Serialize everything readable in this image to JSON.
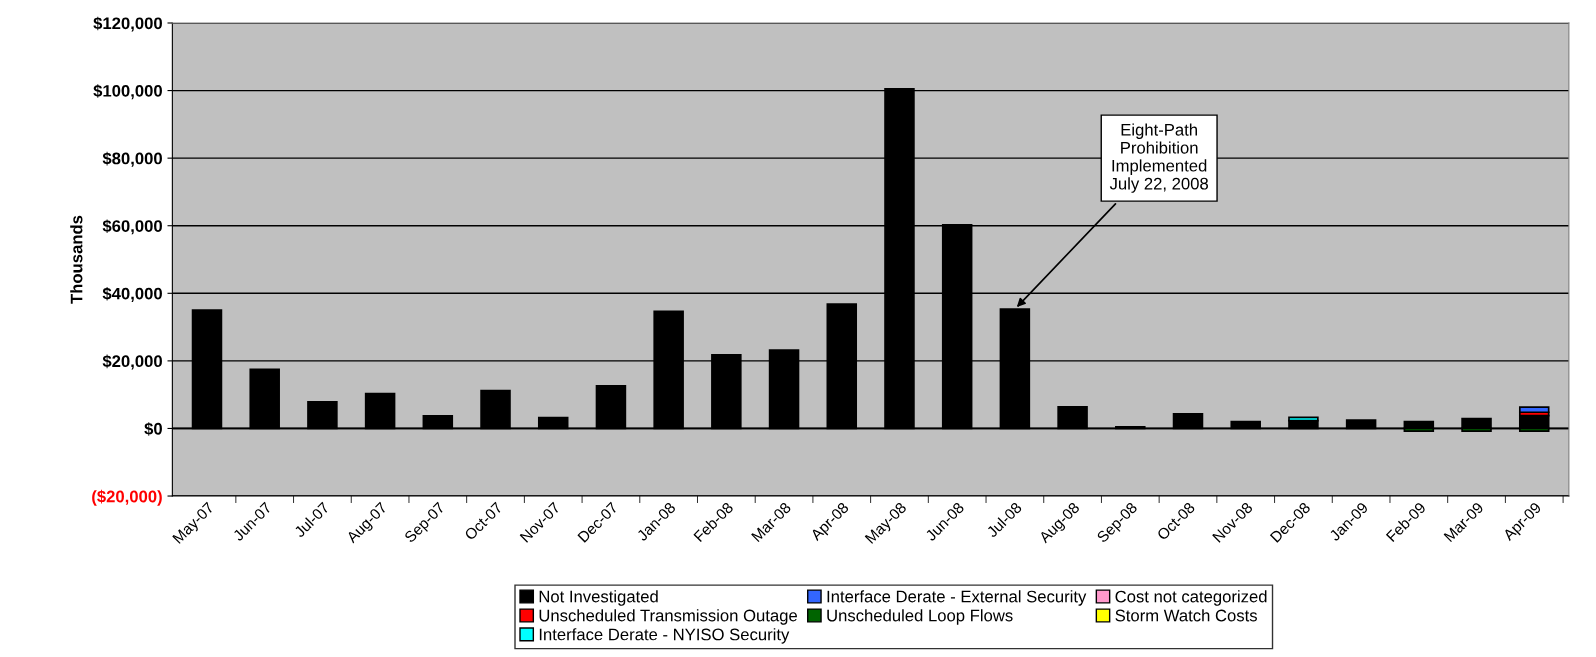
{
  "chart_data": {
    "type": "bar",
    "stacked": true,
    "ylabel": "Thousands",
    "categories": [
      "May-07",
      "Jun-07",
      "Jul-07",
      "Aug-07",
      "Sep-07",
      "Oct-07",
      "Nov-07",
      "Dec-07",
      "Jan-08",
      "Feb-08",
      "Mar-08",
      "Apr-08",
      "May-08",
      "Jun-08",
      "Jul-08",
      "Aug-08",
      "Sep-08",
      "Oct-08",
      "Nov-08",
      "Dec-08",
      "Jan-09",
      "Feb-09",
      "Mar-09",
      "Apr-09"
    ],
    "series": [
      {
        "name": "Not Investigated",
        "color": "#000000",
        "values": [
          35000,
          17500,
          7900,
          10300,
          3700,
          11200,
          3200,
          12600,
          34700,
          21800,
          23200,
          36800,
          100500,
          60300,
          35300,
          6400,
          500,
          4300,
          2000,
          2300,
          2500,
          2000,
          2900,
          3800
        ]
      },
      {
        "name": "Unscheduled Transmission Outage",
        "color": "#ff0000",
        "values": [
          null,
          null,
          null,
          null,
          null,
          null,
          null,
          null,
          null,
          null,
          null,
          null,
          null,
          null,
          null,
          null,
          null,
          null,
          null,
          null,
          null,
          null,
          null,
          1000
        ]
      },
      {
        "name": "Interface Derate - NYISO Security",
        "color": "#00ffff",
        "values": [
          null,
          null,
          null,
          null,
          null,
          null,
          null,
          null,
          null,
          null,
          null,
          null,
          null,
          null,
          null,
          null,
          null,
          null,
          null,
          1000,
          null,
          null,
          null,
          null
        ]
      },
      {
        "name": "Interface Derate - External Security",
        "color": "#3366ff",
        "values": [
          null,
          null,
          null,
          null,
          null,
          null,
          null,
          null,
          null,
          null,
          null,
          null,
          null,
          null,
          null,
          null,
          null,
          null,
          null,
          null,
          null,
          null,
          null,
          1500
        ]
      },
      {
        "name": "Unscheduled Loop Flows",
        "color": "#006400",
        "values": [
          null,
          null,
          null,
          null,
          null,
          null,
          null,
          null,
          null,
          null,
          null,
          null,
          null,
          null,
          null,
          null,
          null,
          null,
          null,
          null,
          null,
          -800,
          -800,
          -800
        ]
      },
      {
        "name": "Cost not categorized",
        "color": "#ff99cc",
        "values": [
          null,
          null,
          null,
          null,
          null,
          null,
          null,
          null,
          null,
          null,
          null,
          null,
          null,
          null,
          null,
          null,
          null,
          null,
          null,
          null,
          null,
          null,
          null,
          null
        ]
      },
      {
        "name": "Storm Watch Costs",
        "color": "#ffff00",
        "values": [
          null,
          null,
          null,
          null,
          null,
          null,
          null,
          null,
          null,
          null,
          null,
          null,
          null,
          null,
          null,
          null,
          null,
          null,
          null,
          null,
          null,
          null,
          null,
          null
        ]
      }
    ],
    "ylim": [
      -20000,
      120000
    ],
    "yticks": [
      {
        "value": -20000,
        "label": "($20,000)"
      },
      {
        "value": 0,
        "label": "$0"
      },
      {
        "value": 20000,
        "label": "$20,000"
      },
      {
        "value": 40000,
        "label": "$40,000"
      },
      {
        "value": 60000,
        "label": "$60,000"
      },
      {
        "value": 80000,
        "label": "$80,000"
      },
      {
        "value": 100000,
        "label": "$100,000"
      },
      {
        "value": 120000,
        "label": "$120,000"
      }
    ],
    "grid": "y",
    "legend": "bottom",
    "annotations": [
      {
        "text": "Eight-Path\nProhibition\nImplemented\nJuly 22, 2008",
        "x": "Jul-08",
        "y": 35300
      }
    ]
  }
}
